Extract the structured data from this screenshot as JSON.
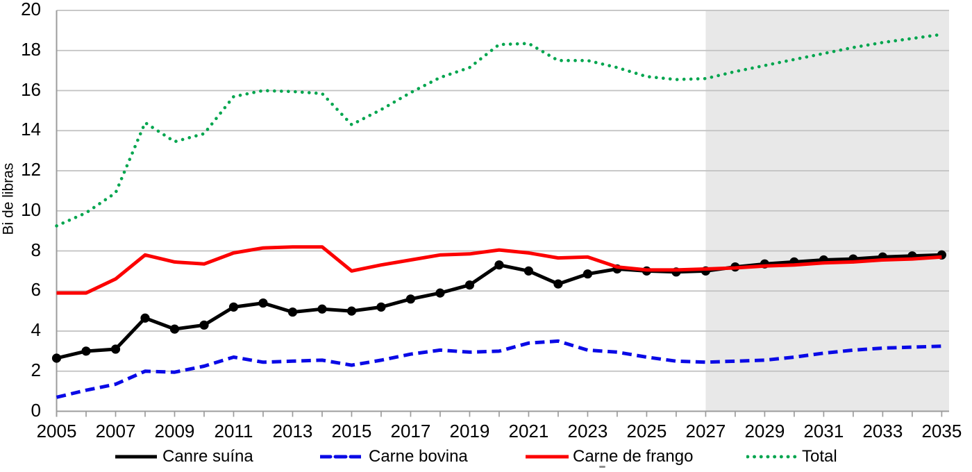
{
  "chart_data": {
    "type": "line",
    "title": "",
    "xlabel": "",
    "ylabel": "Bi de libras",
    "x": [
      2005,
      2006,
      2007,
      2008,
      2009,
      2010,
      2011,
      2012,
      2013,
      2014,
      2015,
      2016,
      2017,
      2018,
      2019,
      2020,
      2021,
      2022,
      2023,
      2024,
      2025,
      2026,
      2027,
      2028,
      2029,
      2030,
      2031,
      2032,
      2033,
      2034,
      2035
    ],
    "x_tick_labels": [
      "2005",
      "2007",
      "2009",
      "2011",
      "2013",
      "2015",
      "2017",
      "2019",
      "2021",
      "2023",
      "2025",
      "2027",
      "2029",
      "2031",
      "2033",
      "2035"
    ],
    "y_ticks": [
      0,
      2,
      4,
      6,
      8,
      10,
      12,
      14,
      16,
      18,
      20
    ],
    "xlim": [
      2005,
      2035.25
    ],
    "ylim": [
      0,
      20
    ],
    "grid": "horizontal",
    "legend_position": "bottom",
    "forecast_band": {
      "x_start": 2027,
      "x_end": 2035.25
    },
    "series": [
      {
        "name": "Canre suína",
        "color": "#000000",
        "style": "solid",
        "markers": true,
        "values": [
          2.65,
          3.0,
          3.1,
          4.65,
          4.1,
          4.3,
          5.2,
          5.4,
          4.95,
          5.1,
          5.0,
          5.2,
          5.6,
          5.9,
          6.3,
          7.3,
          7.0,
          6.35,
          6.85,
          7.1,
          7.0,
          6.95,
          7.0,
          7.2,
          7.35,
          7.45,
          7.55,
          7.6,
          7.7,
          7.75,
          7.8
        ]
      },
      {
        "name": "Carne bovina",
        "color": "#0a0ae6",
        "style": "dashed",
        "markers": false,
        "values": [
          0.7,
          1.05,
          1.35,
          2.0,
          1.95,
          2.25,
          2.7,
          2.45,
          2.5,
          2.55,
          2.3,
          2.55,
          2.85,
          3.05,
          2.95,
          3.0,
          3.4,
          3.5,
          3.05,
          2.95,
          2.7,
          2.5,
          2.45,
          2.5,
          2.55,
          2.7,
          2.9,
          3.05,
          3.15,
          3.2,
          3.25
        ]
      },
      {
        "name": "Carne de frango",
        "color": "#fc0000",
        "style": "solid",
        "markers": false,
        "values": [
          5.9,
          5.9,
          6.6,
          7.8,
          7.45,
          7.35,
          7.9,
          8.15,
          8.2,
          8.2,
          7.0,
          7.3,
          7.55,
          7.8,
          7.85,
          8.05,
          7.9,
          7.65,
          7.7,
          7.2,
          7.05,
          7.05,
          7.1,
          7.15,
          7.25,
          7.3,
          7.4,
          7.45,
          7.55,
          7.6,
          7.7
        ]
      },
      {
        "name": "Total",
        "color": "#00a54e",
        "style": "dotted",
        "markers": false,
        "values": [
          9.25,
          9.9,
          10.9,
          14.4,
          13.45,
          13.85,
          15.7,
          16.0,
          15.95,
          15.85,
          14.3,
          15.05,
          15.9,
          16.65,
          17.15,
          18.3,
          18.35,
          17.5,
          17.5,
          17.15,
          16.7,
          16.55,
          16.6,
          16.95,
          17.25,
          17.55,
          17.85,
          18.15,
          18.4,
          18.6,
          18.8
        ]
      }
    ],
    "colors": {
      "forecast_band": "#e8e8e8",
      "gridline": "#c1c1c1",
      "axis": "#9c9c9c",
      "labels": "#000000"
    }
  }
}
